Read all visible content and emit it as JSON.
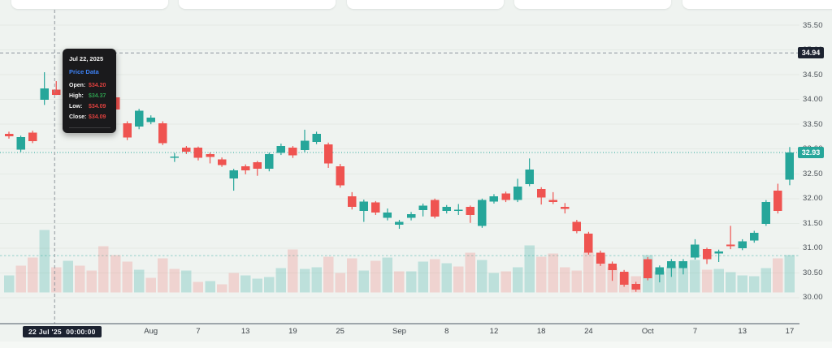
{
  "colors": {
    "up": "#26a69a",
    "down": "#ef5350",
    "volume_up": "rgba(38,166,154,0.25)",
    "volume_down": "rgba(239,83,80,0.20)",
    "grid": "#e4eae5",
    "axis_line": "#4d5866",
    "crosshair": "#8e959d",
    "badge_dark": "#1c2230",
    "accent_blue": "#3d82f6"
  },
  "tooltip": {
    "date": "Jul 22, 2025",
    "title": "Price Data",
    "rows": [
      {
        "label": "Open:",
        "value": "$34.20",
        "color": "red"
      },
      {
        "label": "High:",
        "value": "$34.37",
        "color": "green"
      },
      {
        "label": "Low:",
        "value": "$34.09",
        "color": "red"
      },
      {
        "label": "Close:",
        "value": "$34.09",
        "color": "red"
      }
    ]
  },
  "x_axis": {
    "date_badge": "22 Jul '25  00:00:00",
    "ticks": [
      {
        "label": "Aug",
        "i": 12
      },
      {
        "label": "7",
        "i": 16
      },
      {
        "label": "13",
        "i": 20
      },
      {
        "label": "19",
        "i": 24
      },
      {
        "label": "25",
        "i": 28
      },
      {
        "label": "Sep",
        "i": 33
      },
      {
        "label": "8",
        "i": 37
      },
      {
        "label": "12",
        "i": 41
      },
      {
        "label": "18",
        "i": 45
      },
      {
        "label": "24",
        "i": 49
      },
      {
        "label": "Oct",
        "i": 54
      },
      {
        "label": "7",
        "i": 58
      },
      {
        "label": "13",
        "i": 62
      },
      {
        "label": "17",
        "i": 66
      }
    ]
  },
  "y_axis": {
    "ticks": [
      "35.50",
      "35.00",
      "34.50",
      "34.00",
      "33.50",
      "33.00",
      "32.50",
      "32.00",
      "31.50",
      "31.00",
      "30.50",
      "30.00"
    ]
  },
  "badges": {
    "crosshair_price": {
      "label": "34.94",
      "value": 34.94
    },
    "last_price": {
      "label": "32.93",
      "value": 32.93
    }
  },
  "chart_data": {
    "type": "candlestick",
    "title": "",
    "ylim": [
      29.95,
      35.55
    ],
    "grid": "horizontal",
    "crosshair": {
      "index": 4,
      "price": 34.94
    },
    "last_price_line": 32.93,
    "avg_volume_line_y_price": 30.85,
    "columns": [
      "date",
      "open",
      "high",
      "low",
      "close",
      "volume"
    ],
    "candles": [
      [
        "2025-07-16",
        33.31,
        33.35,
        33.21,
        33.26,
        21
      ],
      [
        "2025-07-17",
        32.99,
        33.27,
        32.94,
        33.24,
        33
      ],
      [
        "2025-07-18",
        33.33,
        33.37,
        33.12,
        33.16,
        43
      ],
      [
        "2025-07-21",
        33.99,
        34.55,
        33.89,
        34.22,
        77
      ],
      [
        "2025-07-22",
        34.2,
        34.37,
        34.09,
        34.09,
        31
      ],
      [
        "2025-07-23",
        34.09,
        34.21,
        34.03,
        34.16,
        39
      ],
      [
        "2025-07-24",
        34.16,
        34.19,
        34.0,
        34.05,
        33
      ],
      [
        "2025-07-25",
        34.05,
        34.1,
        33.92,
        33.98,
        27
      ],
      [
        "2025-07-28",
        33.98,
        34.08,
        33.88,
        33.95,
        57
      ],
      [
        "2025-07-29",
        34.04,
        34.07,
        33.76,
        33.8,
        46
      ],
      [
        "2025-07-30",
        33.52,
        33.56,
        33.18,
        33.23,
        38
      ],
      [
        "2025-07-31",
        33.45,
        33.81,
        33.4,
        33.77,
        28
      ],
      [
        "2025-08-01",
        33.54,
        33.68,
        33.5,
        33.63,
        18
      ],
      [
        "2025-08-04",
        33.52,
        33.56,
        33.08,
        33.12,
        42
      ],
      [
        "2025-08-05",
        32.83,
        32.92,
        32.74,
        32.85,
        29
      ],
      [
        "2025-08-06",
        33.03,
        33.06,
        32.9,
        32.95,
        27
      ],
      [
        "2025-08-07",
        33.03,
        33.05,
        32.77,
        32.82,
        13
      ],
      [
        "2025-08-08",
        32.9,
        32.93,
        32.71,
        32.84,
        14
      ],
      [
        "2025-08-11",
        32.79,
        32.83,
        32.64,
        32.68,
        10
      ],
      [
        "2025-08-12",
        32.41,
        32.6,
        32.16,
        32.57,
        24
      ],
      [
        "2025-08-13",
        32.65,
        32.69,
        32.49,
        32.57,
        21
      ],
      [
        "2025-08-14",
        32.73,
        32.76,
        32.46,
        32.6,
        17
      ],
      [
        "2025-08-15",
        32.6,
        32.93,
        32.55,
        32.9,
        19
      ],
      [
        "2025-08-18",
        32.92,
        33.11,
        32.88,
        33.06,
        30
      ],
      [
        "2025-08-19",
        33.03,
        33.06,
        32.82,
        32.87,
        53
      ],
      [
        "2025-08-20",
        32.98,
        33.39,
        32.94,
        33.17,
        29
      ],
      [
        "2025-08-21",
        33.14,
        33.35,
        33.1,
        33.31,
        31
      ],
      [
        "2025-08-22",
        33.09,
        33.13,
        32.62,
        32.71,
        44
      ],
      [
        "2025-08-25",
        32.65,
        32.7,
        32.22,
        32.27,
        24
      ],
      [
        "2025-08-26",
        32.05,
        32.13,
        31.78,
        31.83,
        42
      ],
      [
        "2025-08-27",
        31.75,
        31.98,
        31.53,
        31.94,
        27
      ],
      [
        "2025-08-28",
        31.92,
        31.95,
        31.67,
        31.72,
        39
      ],
      [
        "2025-08-29",
        31.61,
        31.8,
        31.56,
        31.72,
        43
      ],
      [
        "2025-09-02",
        31.47,
        31.57,
        31.39,
        31.53,
        26
      ],
      [
        "2025-09-03",
        31.61,
        31.73,
        31.56,
        31.69,
        26
      ],
      [
        "2025-09-04",
        31.77,
        31.9,
        31.64,
        31.86,
        38
      ],
      [
        "2025-09-05",
        31.97,
        32.0,
        31.6,
        31.64,
        41
      ],
      [
        "2025-09-08",
        31.75,
        31.87,
        31.7,
        31.83,
        36
      ],
      [
        "2025-09-09",
        31.75,
        31.89,
        31.67,
        31.78,
        32
      ],
      [
        "2025-09-10",
        31.83,
        31.86,
        31.51,
        31.67,
        49
      ],
      [
        "2025-09-11",
        31.45,
        32.0,
        31.41,
        31.97,
        40
      ],
      [
        "2025-09-12",
        31.94,
        32.09,
        31.9,
        32.05,
        24
      ],
      [
        "2025-09-15",
        32.1,
        32.14,
        31.93,
        31.97,
        26
      ],
      [
        "2025-09-16",
        31.97,
        32.4,
        31.93,
        32.24,
        31
      ],
      [
        "2025-09-17",
        32.29,
        32.81,
        32.25,
        32.59,
        58
      ],
      [
        "2025-09-18",
        32.19,
        32.23,
        31.88,
        32.02,
        44
      ],
      [
        "2025-09-19",
        31.97,
        32.13,
        31.89,
        31.93,
        48
      ],
      [
        "2025-09-22",
        31.83,
        31.91,
        31.7,
        31.79,
        31
      ],
      [
        "2025-09-23",
        31.53,
        31.57,
        31.3,
        31.34,
        27
      ],
      [
        "2025-09-24",
        31.29,
        31.33,
        30.87,
        30.91,
        50
      ],
      [
        "2025-09-25",
        30.91,
        30.95,
        30.64,
        30.69,
        47
      ],
      [
        "2025-09-26",
        30.69,
        30.73,
        30.34,
        30.56,
        31
      ],
      [
        "2025-09-29",
        30.52,
        30.56,
        30.22,
        30.26,
        24
      ],
      [
        "2025-09-30",
        30.28,
        30.32,
        30.12,
        30.16,
        20
      ],
      [
        "2025-10-01",
        30.78,
        30.82,
        30.35,
        30.39,
        46
      ],
      [
        "2025-10-02",
        30.47,
        30.65,
        30.31,
        30.61,
        26
      ],
      [
        "2025-10-03",
        30.6,
        30.78,
        30.42,
        30.74,
        32
      ],
      [
        "2025-10-06",
        30.6,
        30.78,
        30.47,
        30.74,
        30
      ],
      [
        "2025-10-07",
        30.81,
        31.18,
        30.77,
        31.07,
        40
      ],
      [
        "2025-10-08",
        30.98,
        31.01,
        30.68,
        30.78,
        28
      ],
      [
        "2025-10-09",
        30.89,
        30.97,
        30.72,
        30.93,
        29
      ],
      [
        "2025-10-10",
        31.07,
        31.45,
        30.98,
        31.04,
        25
      ],
      [
        "2025-10-13",
        31.0,
        31.18,
        30.96,
        31.14,
        21
      ],
      [
        "2025-10-14",
        31.15,
        31.35,
        31.11,
        31.31,
        20
      ],
      [
        "2025-10-15",
        31.49,
        31.97,
        31.45,
        31.93,
        30
      ],
      [
        "2025-10-16",
        32.16,
        32.3,
        31.7,
        31.75,
        42
      ],
      [
        "2025-10-17",
        32.38,
        33.04,
        32.27,
        32.93,
        46
      ]
    ]
  }
}
